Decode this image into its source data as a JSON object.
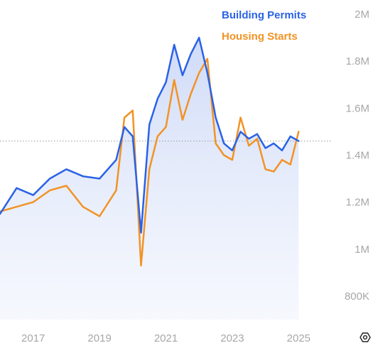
{
  "chart_data": {
    "type": "line",
    "title": "",
    "xlabel": "",
    "ylabel": "",
    "x_ticks": [
      "2017",
      "2019",
      "2021",
      "2023",
      "2025"
    ],
    "y_ticks": [
      "800K",
      "1M",
      "1.2M",
      "1.4M",
      "1.6M",
      "1.8M",
      "2M"
    ],
    "y_tick_values": [
      800000,
      1000000,
      1200000,
      1400000,
      1600000,
      1800000,
      2000000
    ],
    "xlim": [
      2016.0,
      2025.1
    ],
    "ylim": [
      700000,
      2000000
    ],
    "grid": false,
    "legend_position": "top-right",
    "reference_line_value": 1460000,
    "x": [
      2016.0,
      2016.5,
      2017.0,
      2017.5,
      2018.0,
      2018.5,
      2019.0,
      2019.5,
      2019.75,
      2020.0,
      2020.25,
      2020.5,
      2020.75,
      2021.0,
      2021.25,
      2021.5,
      2021.75,
      2022.0,
      2022.25,
      2022.5,
      2022.75,
      2023.0,
      2023.25,
      2023.5,
      2023.75,
      2024.0,
      2024.25,
      2024.5,
      2024.75,
      2025.0
    ],
    "series": [
      {
        "name": "Building Permits",
        "color": "#2a62e6",
        "fill": true,
        "values": [
          1150000,
          1260000,
          1230000,
          1300000,
          1340000,
          1310000,
          1300000,
          1380000,
          1520000,
          1480000,
          1070000,
          1530000,
          1640000,
          1710000,
          1870000,
          1740000,
          1830000,
          1900000,
          1750000,
          1560000,
          1450000,
          1420000,
          1500000,
          1470000,
          1490000,
          1430000,
          1450000,
          1420000,
          1480000,
          1460000
        ]
      },
      {
        "name": "Housing Starts",
        "color": "#f29325",
        "fill": false,
        "values": [
          1160000,
          1180000,
          1200000,
          1250000,
          1270000,
          1180000,
          1140000,
          1250000,
          1560000,
          1590000,
          930000,
          1340000,
          1480000,
          1520000,
          1720000,
          1550000,
          1660000,
          1750000,
          1810000,
          1450000,
          1400000,
          1380000,
          1560000,
          1440000,
          1470000,
          1340000,
          1330000,
          1380000,
          1360000,
          1500000
        ]
      }
    ]
  }
}
